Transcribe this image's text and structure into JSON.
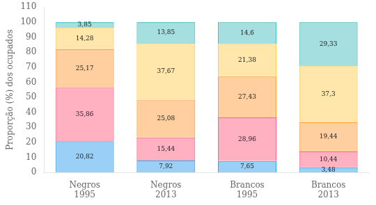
{
  "chart_data": {
    "type": "bar",
    "stacked": true,
    "grid": false,
    "data_labels": true,
    "ylabel": "Proporção (%) dos ocupados",
    "categories": [
      [
        "Negros",
        "1995"
      ],
      [
        "Negros",
        "2013"
      ],
      [
        "Brancos",
        "1995"
      ],
      [
        "Brancos",
        "2013"
      ]
    ],
    "series": [
      {
        "values": [
          20.82,
          7.92,
          7.65,
          3.48
        ],
        "value_labels": [
          "20,82",
          "7,92",
          "7,65",
          "3,48"
        ]
      },
      {
        "values": [
          35.86,
          15.44,
          28.96,
          10.44
        ],
        "value_labels": [
          "35,86",
          "15,44",
          "28,96",
          "10,44"
        ]
      },
      {
        "values": [
          25.17,
          25.08,
          27.43,
          19.44
        ],
        "value_labels": [
          "25,17",
          "25,08",
          "27,43",
          "19,44"
        ]
      },
      {
        "values": [
          14.28,
          37.67,
          21.38,
          37.3
        ],
        "value_labels": [
          "14,28",
          "37,67",
          "21,38",
          "37,3"
        ]
      },
      {
        "values": [
          3.85,
          13.85,
          14.6,
          29.33
        ],
        "value_labels": [
          "3,85",
          "13,85",
          "14,6",
          "29,33"
        ]
      }
    ],
    "ylim": [
      0,
      110
    ],
    "yticks": [
      0,
      10,
      20,
      30,
      40,
      50,
      60,
      70,
      80,
      90,
      100,
      110
    ]
  }
}
